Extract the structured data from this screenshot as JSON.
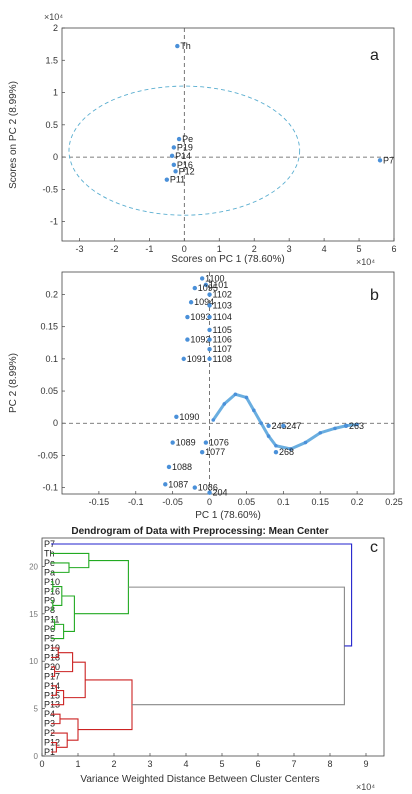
{
  "chart_data": [
    {
      "panel": "a",
      "type": "scatter",
      "xlabel": "Scores on PC 1 (78.60%)",
      "ylabel": "Scores on PC 2 (8.99%)",
      "x_multiplier": "×10⁴",
      "y_multiplier": "×10⁴",
      "xlim": [
        -3.5,
        6.0
      ],
      "ylim": [
        -1.3,
        2.0
      ],
      "x_ticks": [
        -3,
        -2,
        -1,
        0,
        1,
        2,
        3,
        4,
        5,
        6
      ],
      "y_ticks": [
        -1,
        -0.5,
        0,
        0.5,
        1,
        1.5,
        2
      ],
      "confidence_ellipse": {
        "center": [
          0,
          0.1
        ],
        "rx": 3.3,
        "ry": 1.0
      },
      "points": [
        {
          "label": "Th",
          "x": -0.2,
          "y": 1.72
        },
        {
          "label": "P7",
          "x": 5.6,
          "y": -0.05
        },
        {
          "label": "Pe",
          "x": -0.15,
          "y": 0.28
        },
        {
          "label": "P19",
          "x": -0.3,
          "y": 0.15
        },
        {
          "label": "P14",
          "x": -0.35,
          "y": 0.02
        },
        {
          "label": "P16",
          "x": -0.3,
          "y": -0.12
        },
        {
          "label": "P12",
          "x": -0.25,
          "y": -0.22
        },
        {
          "label": "P11",
          "x": -0.5,
          "y": -0.35
        }
      ]
    },
    {
      "panel": "b",
      "type": "scatter",
      "xlabel": "PC 1 (78.60%)",
      "ylabel": "PC 2 (8.99%)",
      "xlim": [
        -0.2,
        0.25
      ],
      "ylim": [
        -0.11,
        0.235
      ],
      "x_ticks": [
        -0.15,
        -0.1,
        -0.05,
        0,
        0.05,
        0.1,
        0.15,
        0.2,
        0.25
      ],
      "y_ticks": [
        -0.1,
        -0.05,
        0,
        0.05,
        0.1,
        0.15,
        0.2
      ],
      "labeled_points": [
        {
          "label": "1100",
          "x": -0.01,
          "y": 0.225
        },
        {
          "label": "1101",
          "x": -0.005,
          "y": 0.215
        },
        {
          "label": "1095",
          "x": -0.02,
          "y": 0.21
        },
        {
          "label": "1102",
          "x": 0.0,
          "y": 0.2
        },
        {
          "label": "1094",
          "x": -0.025,
          "y": 0.188
        },
        {
          "label": "1103",
          "x": 0.0,
          "y": 0.183
        },
        {
          "label": "1093",
          "x": -0.03,
          "y": 0.165
        },
        {
          "label": "1104",
          "x": 0.0,
          "y": 0.165
        },
        {
          "label": "1105",
          "x": 0.0,
          "y": 0.145
        },
        {
          "label": "1092",
          "x": -0.03,
          "y": 0.13
        },
        {
          "label": "1106",
          "x": 0.0,
          "y": 0.13
        },
        {
          "label": "1107",
          "x": 0.0,
          "y": 0.115
        },
        {
          "label": "1091",
          "x": -0.035,
          "y": 0.1
        },
        {
          "label": "1108",
          "x": 0.0,
          "y": 0.1
        },
        {
          "label": "1090",
          "x": -0.045,
          "y": 0.01
        },
        {
          "label": "1089",
          "x": -0.05,
          "y": -0.03
        },
        {
          "label": "1077",
          "x": -0.01,
          "y": -0.045
        },
        {
          "label": "1076",
          "x": -0.005,
          "y": -0.03
        },
        {
          "label": "1088",
          "x": -0.055,
          "y": -0.068
        },
        {
          "label": "1087",
          "x": -0.06,
          "y": -0.095
        },
        {
          "label": "1086",
          "x": -0.02,
          "y": -0.1
        },
        {
          "label": "204",
          "x": 0.0,
          "y": -0.108
        },
        {
          "label": "245",
          "x": 0.08,
          "y": -0.004
        },
        {
          "label": "247",
          "x": 0.1,
          "y": -0.004
        },
        {
          "label": "263",
          "x": 0.185,
          "y": -0.004
        },
        {
          "label": "268",
          "x": 0.09,
          "y": -0.045
        }
      ],
      "curve_points": [
        [
          0.005,
          0.005
        ],
        [
          0.02,
          0.03
        ],
        [
          0.035,
          0.045
        ],
        [
          0.05,
          0.04
        ],
        [
          0.06,
          0.02
        ],
        [
          0.07,
          0.0
        ],
        [
          0.08,
          -0.02
        ],
        [
          0.09,
          -0.035
        ],
        [
          0.11,
          -0.04
        ],
        [
          0.13,
          -0.03
        ],
        [
          0.15,
          -0.015
        ],
        [
          0.17,
          -0.008
        ],
        [
          0.185,
          -0.004
        ],
        [
          0.2,
          -0.002
        ]
      ]
    },
    {
      "panel": "c",
      "type": "dendrogram",
      "title": "Dendrogram of Data with Preprocessing: Mean Center",
      "xlabel": "Variance Weighted Distance Between Cluster Centers",
      "x_multiplier": "×10⁴",
      "xlim": [
        0,
        9.5
      ],
      "x_ticks": [
        0,
        1,
        2,
        3,
        4,
        5,
        6,
        7,
        8,
        9
      ],
      "y_ticks": [
        0,
        5,
        10,
        15,
        20
      ],
      "leaves": [
        "P7",
        "Th",
        "Pe",
        "Pa",
        "P10",
        "P16",
        "P9",
        "P8",
        "P11",
        "P6",
        "P5",
        "P19",
        "P18",
        "P20",
        "P17",
        "P14",
        "P15",
        "P13",
        "P4",
        "P3",
        "P2",
        "P12",
        "P1"
      ],
      "colors": {
        "blue": "#2222cc",
        "green": "#22aa22",
        "red": "#cc2222",
        "gray": "#888888"
      },
      "merges": [
        {
          "a": "P7",
          "b": "rest",
          "distance": 8.6,
          "color": "blue"
        },
        {
          "a": "green_cluster",
          "b": "red_cluster",
          "distance": 8.4,
          "color": "gray"
        },
        {
          "a": "Th_group",
          "b": "P_green",
          "distance": 2.4,
          "color": "green"
        },
        {
          "a": "red_top",
          "b": "red_bottom",
          "distance": 2.5,
          "color": "red"
        }
      ]
    }
  ],
  "panel_labels": {
    "a": "a",
    "b": "b",
    "c": "c"
  },
  "page": {}
}
